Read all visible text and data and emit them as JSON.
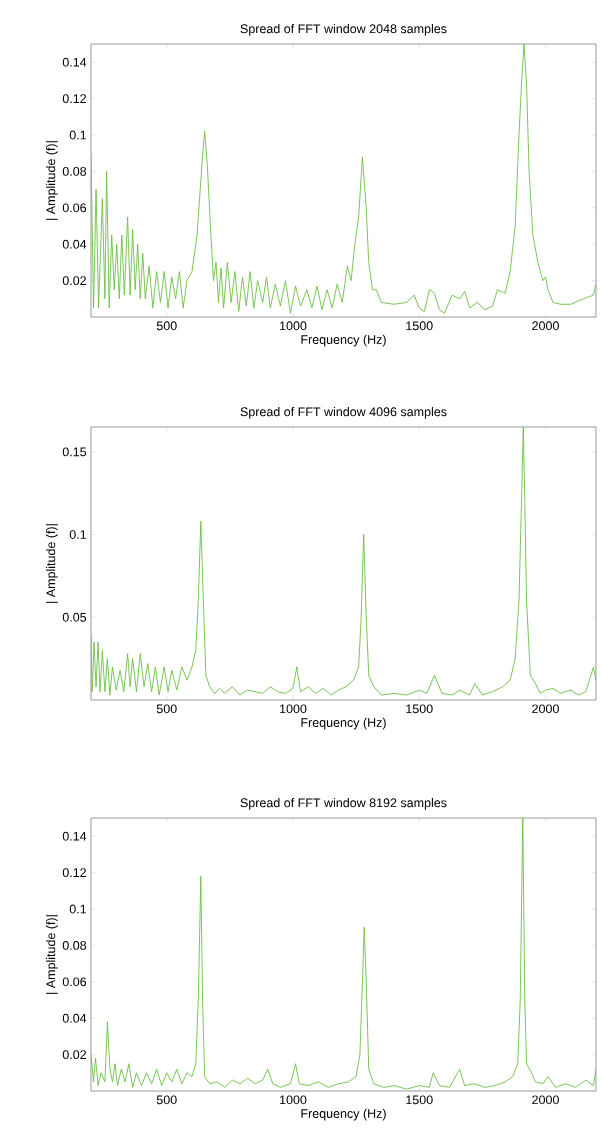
{
  "chart_data": [
    {
      "type": "line",
      "title": "Spread of FFT window 2048 samples",
      "xlabel": "Frequency (Hz)",
      "ylabel": "| Amplitude (f)|",
      "xlim": [
        200,
        2200
      ],
      "ylim": [
        0,
        0.15
      ],
      "xticks": [
        500,
        1000,
        1500,
        2000
      ],
      "yticks": [
        0.02,
        0.04,
        0.06,
        0.08,
        0.1,
        0.12,
        0.14
      ],
      "grid": false,
      "series": [
        {
          "color": "#6cbf45",
          "x": [
            200,
            210,
            220,
            230,
            245,
            255,
            262,
            272,
            282,
            292,
            302,
            312,
            322,
            332,
            345,
            355,
            365,
            375,
            385,
            395,
            405,
            415,
            430,
            445,
            460,
            475,
            490,
            505,
            520,
            535,
            550,
            565,
            580,
            600,
            620,
            640,
            650,
            660,
            675,
            685,
            695,
            705,
            715,
            725,
            740,
            755,
            770,
            785,
            800,
            815,
            830,
            845,
            860,
            880,
            895,
            910,
            930,
            950,
            970,
            990,
            1010,
            1030,
            1055,
            1075,
            1095,
            1115,
            1135,
            1155,
            1175,
            1195,
            1215,
            1230,
            1245,
            1260,
            1275,
            1290,
            1300,
            1315,
            1330,
            1350,
            1400,
            1450,
            1480,
            1500,
            1520,
            1540,
            1560,
            1580,
            1600,
            1630,
            1660,
            1680,
            1700,
            1730,
            1760,
            1790,
            1810,
            1840,
            1860,
            1880,
            1895,
            1905,
            1915,
            1925,
            1935,
            1950,
            1970,
            1990,
            2000,
            2010,
            2030,
            2060,
            2100,
            2150,
            2190,
            2200
          ],
          "values": [
            0.09,
            0.005,
            0.07,
            0.005,
            0.065,
            0.01,
            0.08,
            0.005,
            0.045,
            0.015,
            0.04,
            0.01,
            0.045,
            0.012,
            0.055,
            0.012,
            0.048,
            0.015,
            0.04,
            0.01,
            0.035,
            0.01,
            0.028,
            0.005,
            0.025,
            0.008,
            0.025,
            0.005,
            0.022,
            0.01,
            0.025,
            0.005,
            0.02,
            0.025,
            0.045,
            0.085,
            0.102,
            0.085,
            0.045,
            0.02,
            0.03,
            0.008,
            0.027,
            0.005,
            0.03,
            0.008,
            0.025,
            0.003,
            0.022,
            0.006,
            0.025,
            0.005,
            0.02,
            0.008,
            0.022,
            0.005,
            0.018,
            0.006,
            0.02,
            0.002,
            0.017,
            0.006,
            0.015,
            0.005,
            0.017,
            0.004,
            0.015,
            0.005,
            0.018,
            0.008,
            0.028,
            0.02,
            0.04,
            0.055,
            0.088,
            0.06,
            0.03,
            0.015,
            0.015,
            0.008,
            0.007,
            0.008,
            0.012,
            0.005,
            0.003,
            0.015,
            0.013,
            0.004,
            0.002,
            0.012,
            0.01,
            0.014,
            0.005,
            0.008,
            0.004,
            0.006,
            0.015,
            0.013,
            0.025,
            0.05,
            0.1,
            0.128,
            0.15,
            0.128,
            0.08,
            0.045,
            0.03,
            0.02,
            0.022,
            0.015,
            0.008,
            0.007,
            0.007,
            0.01,
            0.012,
            0.018
          ]
        }
      ]
    },
    {
      "type": "line",
      "title": "Spread of FFT window 4096 samples",
      "xlabel": "Frequency (Hz)",
      "ylabel": "| Amplitude (f)|",
      "xlim": [
        200,
        2200
      ],
      "ylim": [
        0,
        0.165
      ],
      "xticks": [
        500,
        1000,
        1500,
        2000
      ],
      "yticks": [
        0.05,
        0.1,
        0.15
      ],
      "grid": false,
      "series": [
        {
          "color": "#6cbf45",
          "x": [
            200,
            205,
            212,
            220,
            228,
            236,
            245,
            255,
            265,
            275,
            285,
            300,
            315,
            330,
            345,
            355,
            365,
            380,
            395,
            410,
            425,
            440,
            455,
            470,
            490,
            505,
            520,
            540,
            560,
            580,
            600,
            615,
            625,
            635,
            645,
            655,
            670,
            690,
            710,
            730,
            760,
            790,
            820,
            850,
            880,
            910,
            940,
            970,
            1000,
            1015,
            1030,
            1060,
            1090,
            1120,
            1150,
            1180,
            1210,
            1240,
            1260,
            1270,
            1280,
            1290,
            1300,
            1320,
            1350,
            1400,
            1450,
            1500,
            1530,
            1560,
            1590,
            1630,
            1660,
            1700,
            1720,
            1750,
            1790,
            1830,
            1860,
            1880,
            1895,
            1905,
            1912,
            1918,
            1925,
            1940,
            1960,
            1980,
            2000,
            2030,
            2060,
            2100,
            2130,
            2160,
            2190,
            2200
          ],
          "values": [
            0.04,
            0.005,
            0.035,
            0.008,
            0.035,
            0.005,
            0.03,
            0.005,
            0.025,
            0.003,
            0.02,
            0.006,
            0.018,
            0.005,
            0.028,
            0.008,
            0.025,
            0.005,
            0.028,
            0.008,
            0.022,
            0.005,
            0.02,
            0.003,
            0.02,
            0.005,
            0.018,
            0.006,
            0.02,
            0.012,
            0.02,
            0.03,
            0.06,
            0.108,
            0.06,
            0.015,
            0.008,
            0.004,
            0.007,
            0.004,
            0.008,
            0.003,
            0.006,
            0.005,
            0.004,
            0.008,
            0.005,
            0.004,
            0.007,
            0.02,
            0.005,
            0.008,
            0.004,
            0.007,
            0.003,
            0.006,
            0.008,
            0.012,
            0.02,
            0.05,
            0.1,
            0.05,
            0.015,
            0.008,
            0.003,
            0.004,
            0.003,
            0.006,
            0.004,
            0.015,
            0.004,
            0.003,
            0.006,
            0.003,
            0.01,
            0.003,
            0.005,
            0.008,
            0.012,
            0.025,
            0.06,
            0.12,
            0.165,
            0.12,
            0.06,
            0.015,
            0.01,
            0.004,
            0.006,
            0.007,
            0.004,
            0.006,
            0.003,
            0.005,
            0.02,
            0.012
          ]
        }
      ]
    },
    {
      "type": "line",
      "title": "Spread of FFT window 8192 samples",
      "xlabel": "Frequency (Hz)",
      "ylabel": "| Amplitude (f)|",
      "xlim": [
        200,
        2200
      ],
      "ylim": [
        0,
        0.15
      ],
      "xticks": [
        500,
        1000,
        1500,
        2000
      ],
      "yticks": [
        0.02,
        0.04,
        0.06,
        0.08,
        0.1,
        0.12,
        0.14
      ],
      "grid": false,
      "series": [
        {
          "color": "#6cbf45",
          "x": [
            200,
            210,
            218,
            228,
            240,
            255,
            265,
            275,
            285,
            295,
            305,
            320,
            335,
            350,
            365,
            380,
            400,
            420,
            440,
            460,
            480,
            500,
            520,
            540,
            560,
            580,
            600,
            615,
            625,
            635,
            642,
            650,
            670,
            700,
            730,
            760,
            790,
            820,
            850,
            880,
            900,
            920,
            950,
            990,
            1010,
            1025,
            1060,
            1100,
            1140,
            1180,
            1220,
            1250,
            1265,
            1275,
            1282,
            1290,
            1300,
            1320,
            1360,
            1400,
            1450,
            1500,
            1540,
            1555,
            1580,
            1620,
            1660,
            1680,
            1720,
            1760,
            1800,
            1840,
            1870,
            1890,
            1900,
            1910,
            1918,
            1925,
            1945,
            1960,
            1990,
            2010,
            2040,
            2080,
            2120,
            2160,
            2190,
            2200
          ],
          "values": [
            0.02,
            0.005,
            0.018,
            0.003,
            0.01,
            0.005,
            0.038,
            0.012,
            0.005,
            0.015,
            0.003,
            0.012,
            0.005,
            0.015,
            0.002,
            0.01,
            0.003,
            0.01,
            0.004,
            0.012,
            0.003,
            0.01,
            0.005,
            0.012,
            0.004,
            0.01,
            0.008,
            0.015,
            0.05,
            0.118,
            0.05,
            0.008,
            0.004,
            0.005,
            0.002,
            0.006,
            0.004,
            0.007,
            0.004,
            0.006,
            0.012,
            0.004,
            0.002,
            0.004,
            0.015,
            0.004,
            0.003,
            0.005,
            0.002,
            0.004,
            0.005,
            0.008,
            0.02,
            0.06,
            0.09,
            0.06,
            0.012,
            0.004,
            0.002,
            0.003,
            0.001,
            0.003,
            0.002,
            0.01,
            0.003,
            0.002,
            0.012,
            0.003,
            0.004,
            0.002,
            0.003,
            0.005,
            0.008,
            0.015,
            0.05,
            0.15,
            0.05,
            0.015,
            0.01,
            0.005,
            0.004,
            0.008,
            0.002,
            0.004,
            0.002,
            0.006,
            0.003,
            0.012
          ]
        }
      ]
    }
  ]
}
